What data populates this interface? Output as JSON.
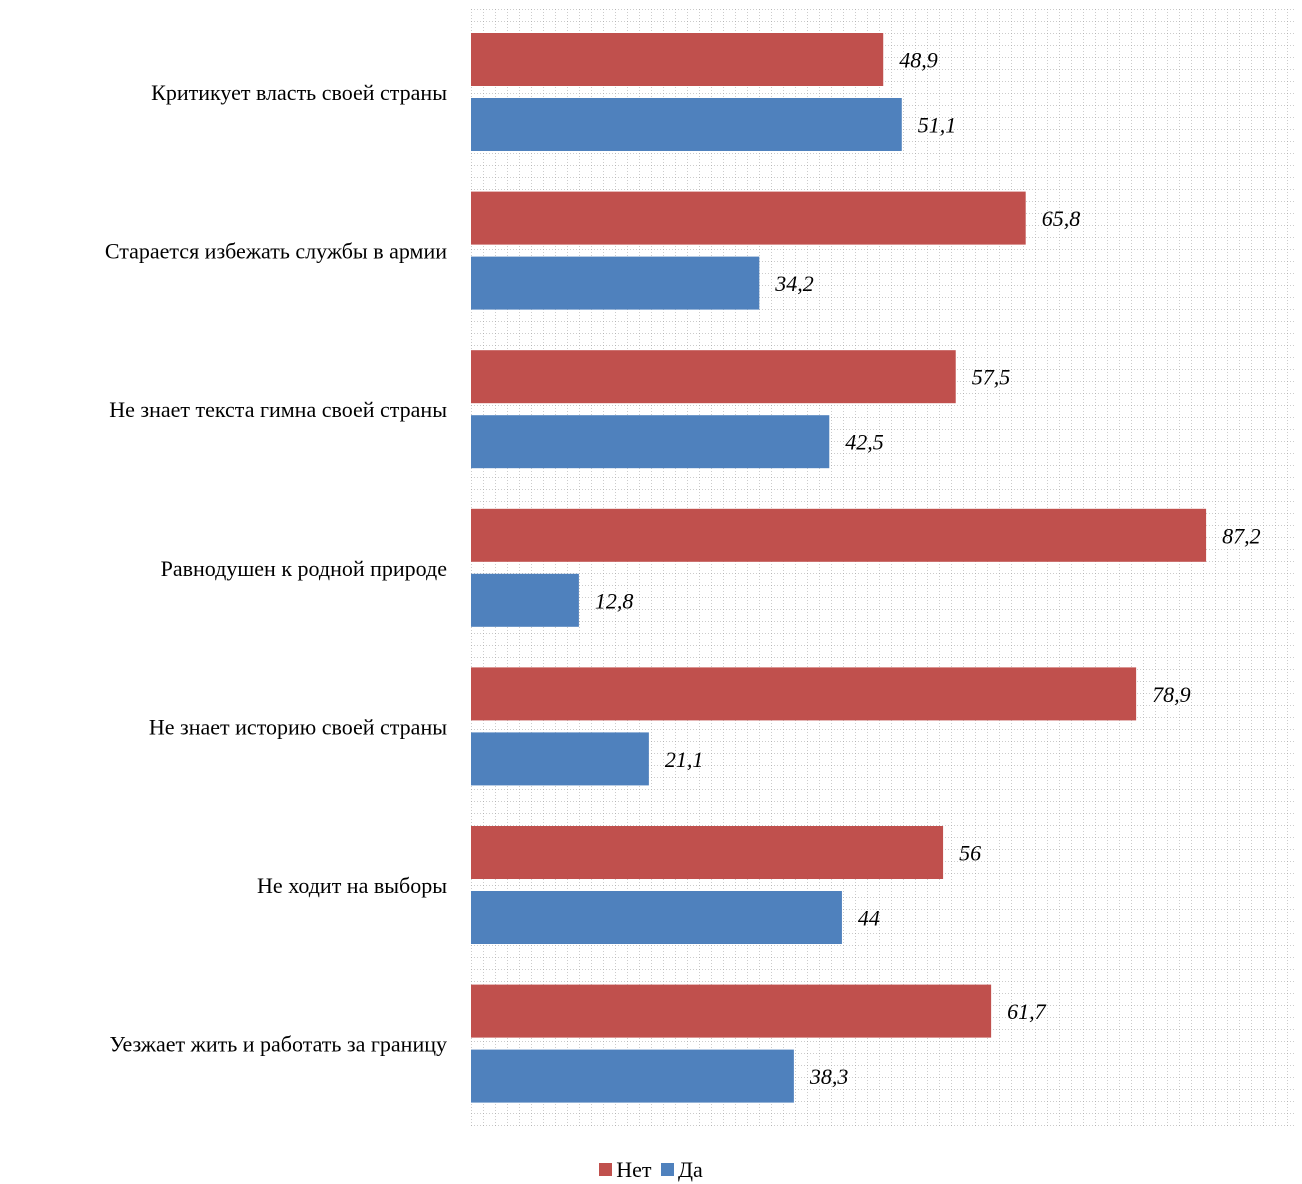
{
  "chart_data": {
    "type": "bar",
    "orientation": "horizontal",
    "categories": [
      "Критикует власть своей страны",
      "Старается избежать службы в армии",
      "Не знает текста гимна своей страны",
      "Равнодушен к родной природе",
      "Не знает историю своей страны",
      "Не ходит на выборы",
      "Уезжает жить и работать за границу"
    ],
    "series": [
      {
        "name": "Нет",
        "color": "#c0504d",
        "values": [
          48.9,
          65.8,
          57.5,
          87.2,
          78.9,
          56,
          61.7
        ],
        "labels": [
          "48,9",
          "65,8",
          "57,5",
          "87,2",
          "78,9",
          "56",
          "61,7"
        ]
      },
      {
        "name": "Да",
        "color": "#4f81bd",
        "values": [
          51.1,
          34.2,
          42.5,
          12.8,
          21.1,
          44,
          38.3
        ],
        "labels": [
          "51,1",
          "34,2",
          "42,5",
          "12,8",
          "21,1",
          "44",
          "38,3"
        ]
      }
    ],
    "xlim": [
      0,
      100
    ],
    "grid": true,
    "legend_position": "bottom"
  }
}
